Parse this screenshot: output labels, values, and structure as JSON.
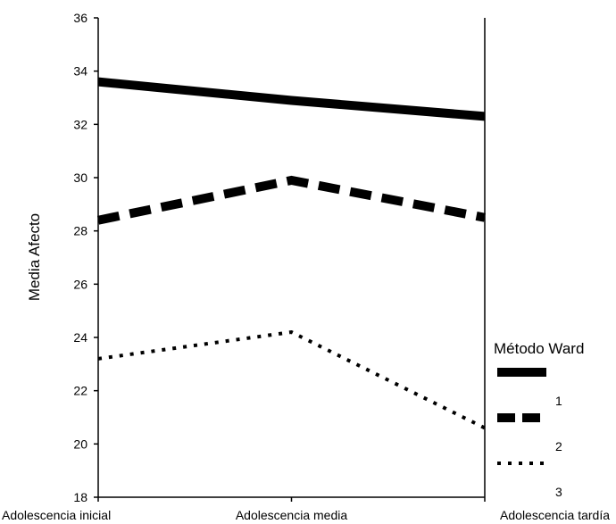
{
  "chart_data": {
    "type": "line",
    "categories": [
      "Adolescencia inicial",
      "Adolescencia media",
      "Adolescencia tardía"
    ],
    "ylabel": "Media Afecto",
    "xlabel": "",
    "title": "",
    "ylim": [
      18,
      36
    ],
    "yticks": [
      18,
      20,
      22,
      24,
      26,
      28,
      30,
      32,
      34,
      36
    ],
    "grid": false,
    "legend": {
      "title": "Método Ward",
      "placement": "right"
    },
    "series": [
      {
        "name": "1",
        "values": [
          33.6,
          32.9,
          32.3
        ],
        "style": "solid",
        "color": "#000000"
      },
      {
        "name": "2",
        "values": [
          28.4,
          29.9,
          28.5
        ],
        "style": "dashed",
        "color": "#000000"
      },
      {
        "name": "3",
        "values": [
          23.2,
          24.2,
          20.6
        ],
        "style": "dotted",
        "color": "#000000"
      }
    ]
  }
}
